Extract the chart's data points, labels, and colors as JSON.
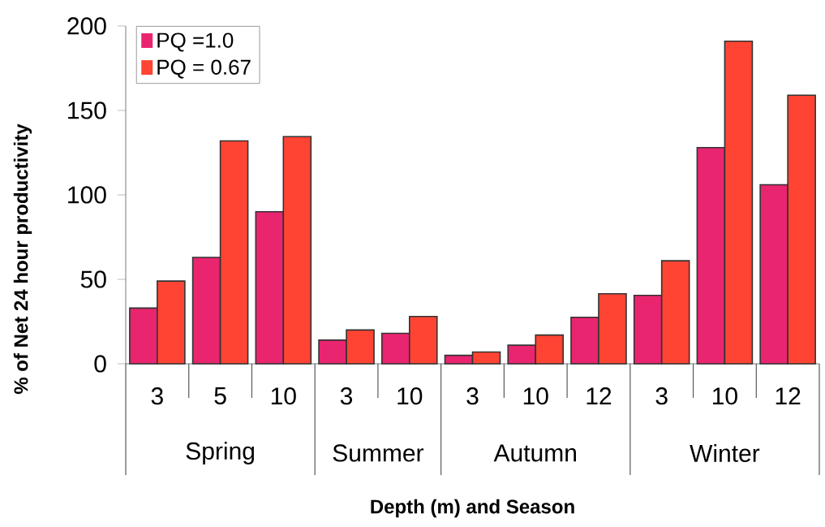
{
  "chart_data": {
    "type": "bar",
    "xlabel": "Depth (m) and Season",
    "ylabel": "% of Net 24 hour productivity",
    "categories": [
      "3",
      "5",
      "10",
      "3",
      "10",
      "3",
      "10",
      "12",
      "3",
      "10",
      "12"
    ],
    "series": [
      {
        "name": "PQ =1.0",
        "color": "#ea2570",
        "values": [
          33,
          63,
          90,
          14,
          18,
          5,
          11,
          27.5,
          40.5,
          128,
          106
        ]
      },
      {
        "name": "PQ = 0.67",
        "color": "#ff4433",
        "values": [
          49,
          132,
          134.5,
          20,
          28,
          7,
          17,
          41.5,
          61,
          191,
          159
        ]
      }
    ],
    "ylim": [
      0,
      200
    ],
    "yticks": [
      0,
      50,
      100,
      150,
      200
    ],
    "legend": "top left",
    "annotations": [
      "Spring",
      "Summer",
      "Autumn",
      "Winter"
    ]
  }
}
